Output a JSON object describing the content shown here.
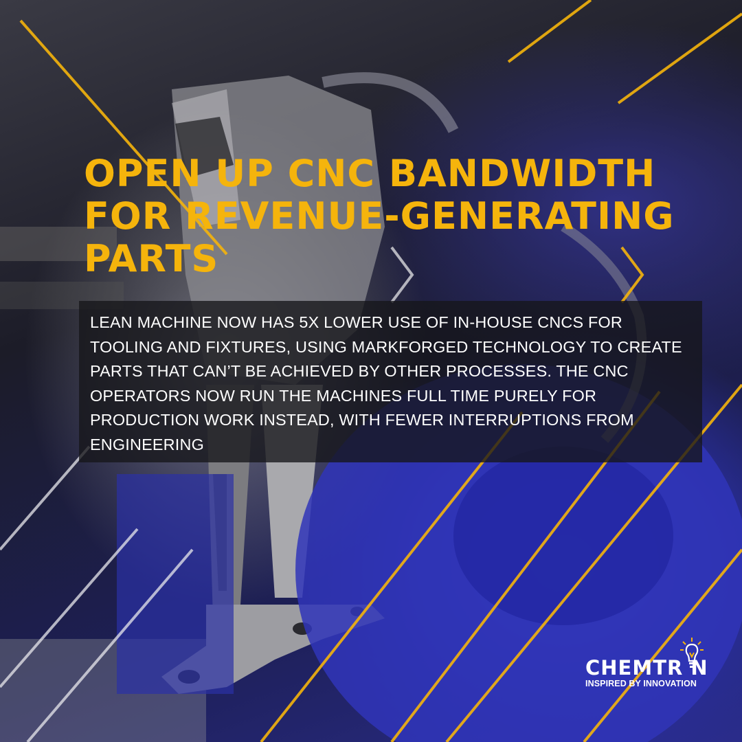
{
  "headline": "OPEN UP CNC BANDWIDTH FOR REVENUE-GENERATING PARTS",
  "body": "LEAN MACHINE NOW HAS 5X LOWER USE OF IN-HOUSE CNCS FOR TOOLING AND FIXTURES, USING MARKFORGED TECHNOLOGY TO CREATE PARTS THAT CAN’T BE ACHIEVED BY OTHER PROCESSES. THE CNC OPERATORS NOW RUN THE MACHINES FULL TIME PURELY FOR PRODUCTION WORK INSTEAD, WITH FEWER INTERRUPTIONS FROM ENGINEERING",
  "logo": {
    "wordmark": "CHEMTR N",
    "tagline": "INSPIRED BY INNOVATION"
  },
  "colors": {
    "accent": "#f5b40c",
    "panel": "#16161a",
    "text": "#ffffff",
    "background_blue": "#2a2fa0"
  },
  "icons": [
    "robot-gripper-photo",
    "lightbulb-icon"
  ]
}
